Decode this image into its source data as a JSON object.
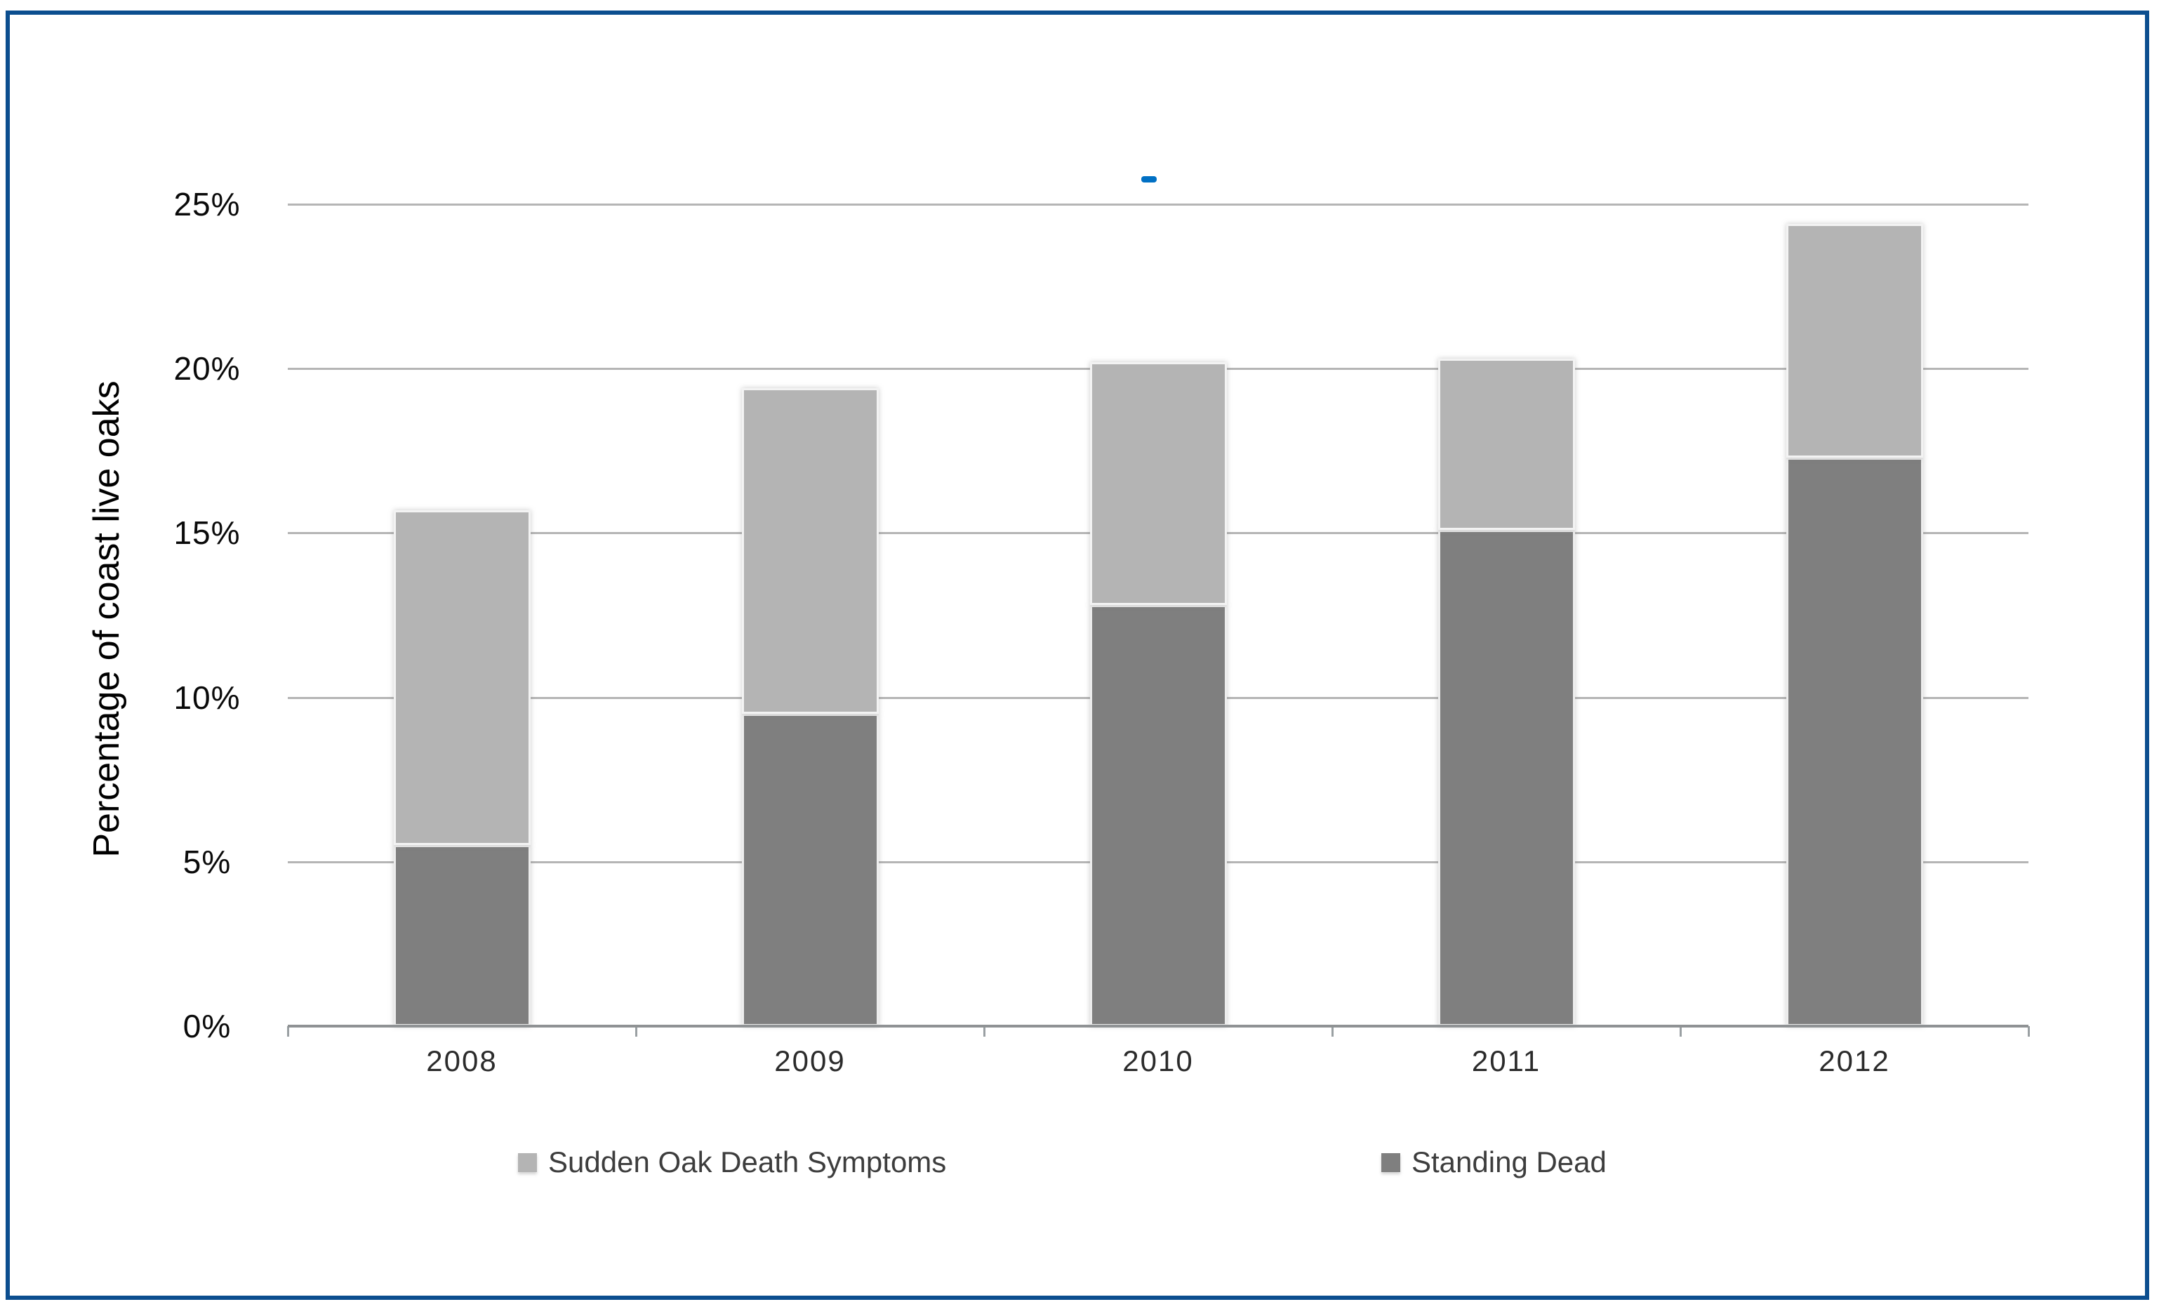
{
  "chart_data": {
    "type": "bar",
    "stacked": true,
    "categories": [
      "2008",
      "2009",
      "2010",
      "2011",
      "2012"
    ],
    "series": [
      {
        "name": "Standing Dead",
        "color": "#7F7F7F",
        "values": [
          5.5,
          9.5,
          12.8,
          15.1,
          17.3
        ]
      },
      {
        "name": "Sudden Oak Death Symptoms",
        "color": "#B4B4B4",
        "values": [
          10.2,
          9.9,
          7.4,
          5.2,
          7.1
        ]
      }
    ],
    "stacked_totals": [
      15.7,
      19.4,
      20.2,
      20.3,
      24.4
    ],
    "title": "",
    "xlabel": "",
    "ylabel": "Percentage of coast live oaks",
    "ylim": [
      0,
      25
    ],
    "ytick_step": 5,
    "ytick_labels": [
      "0%",
      "5%",
      "10%",
      "15%",
      "20%",
      "25%"
    ],
    "grid": true,
    "legend_position": "bottom",
    "legend_order": [
      "Sudden Oak Death Symptoms",
      "Standing Dead"
    ]
  },
  "annotations": {
    "blue_dash_color": "#0070C4"
  },
  "frame": {
    "border_color": "#0C4E8F"
  }
}
